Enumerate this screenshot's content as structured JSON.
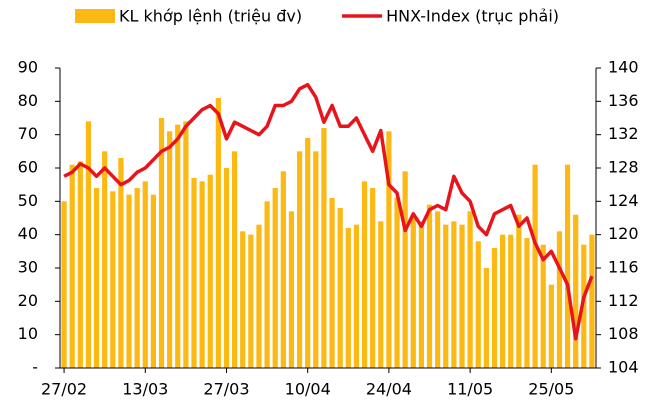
{
  "chart_data": {
    "type": "bar_line",
    "categories": [
      "27/02",
      null,
      null,
      null,
      null,
      null,
      null,
      null,
      null,
      null,
      "13/03",
      null,
      null,
      null,
      null,
      null,
      null,
      null,
      null,
      null,
      "27/03",
      null,
      null,
      null,
      null,
      null,
      null,
      null,
      null,
      null,
      "10/04",
      null,
      null,
      null,
      null,
      null,
      null,
      null,
      null,
      null,
      "24/04",
      null,
      null,
      null,
      null,
      null,
      null,
      null,
      null,
      null,
      "11/05",
      null,
      null,
      null,
      null,
      null,
      null,
      null,
      null,
      null,
      "25/05",
      null,
      null,
      null,
      null,
      null
    ],
    "series": [
      {
        "name": "KL khớp lệnh (triệu đv)",
        "color": "#fcb813",
        "type": "bar",
        "values": [
          50,
          61,
          62,
          74,
          54,
          65,
          53,
          63,
          52,
          54,
          56,
          52,
          75,
          71,
          73,
          74,
          57,
          56,
          58,
          81,
          60,
          65,
          41,
          40,
          43,
          50,
          54,
          59,
          47,
          65,
          69,
          65,
          72,
          51,
          48,
          42,
          43,
          56,
          54,
          44,
          71,
          51,
          59,
          45,
          44,
          49,
          47,
          43,
          44,
          43,
          47,
          38,
          30,
          36,
          40,
          40,
          46,
          39,
          61,
          37,
          25,
          41,
          61,
          46,
          37,
          40
        ]
      },
      {
        "name": "HNX-Index  (trục phải)",
        "color": "#e8141c",
        "type": "line",
        "axis": "y2",
        "values": [
          127,
          127.5,
          128.5,
          128,
          127,
          128,
          127,
          126,
          126.5,
          127.5,
          128,
          129,
          130,
          130.5,
          131.5,
          133,
          134,
          135,
          135.5,
          134.5,
          131.5,
          133.5,
          133,
          132.5,
          132,
          133,
          135.5,
          135.5,
          136,
          137.5,
          138,
          136.5,
          133.5,
          135.5,
          133,
          133,
          134,
          132,
          130,
          132.5,
          126,
          125,
          120.5,
          122.5,
          121,
          123,
          123.5,
          123,
          127,
          125,
          124,
          121,
          120,
          122.5,
          123,
          123.5,
          121,
          122,
          119,
          117,
          118,
          116,
          114,
          107.5,
          112.5,
          115
        ]
      }
    ],
    "ylim": [
      0,
      90
    ],
    "yticks": [
      {
        "value": 0,
        "label": "-"
      },
      10,
      20,
      30,
      40,
      50,
      60,
      70,
      80,
      90
    ],
    "y2lim": [
      104,
      140
    ],
    "y2ticks": [
      104,
      108,
      112,
      116,
      120,
      124,
      128,
      132,
      136,
      140
    ],
    "legend": "top"
  }
}
